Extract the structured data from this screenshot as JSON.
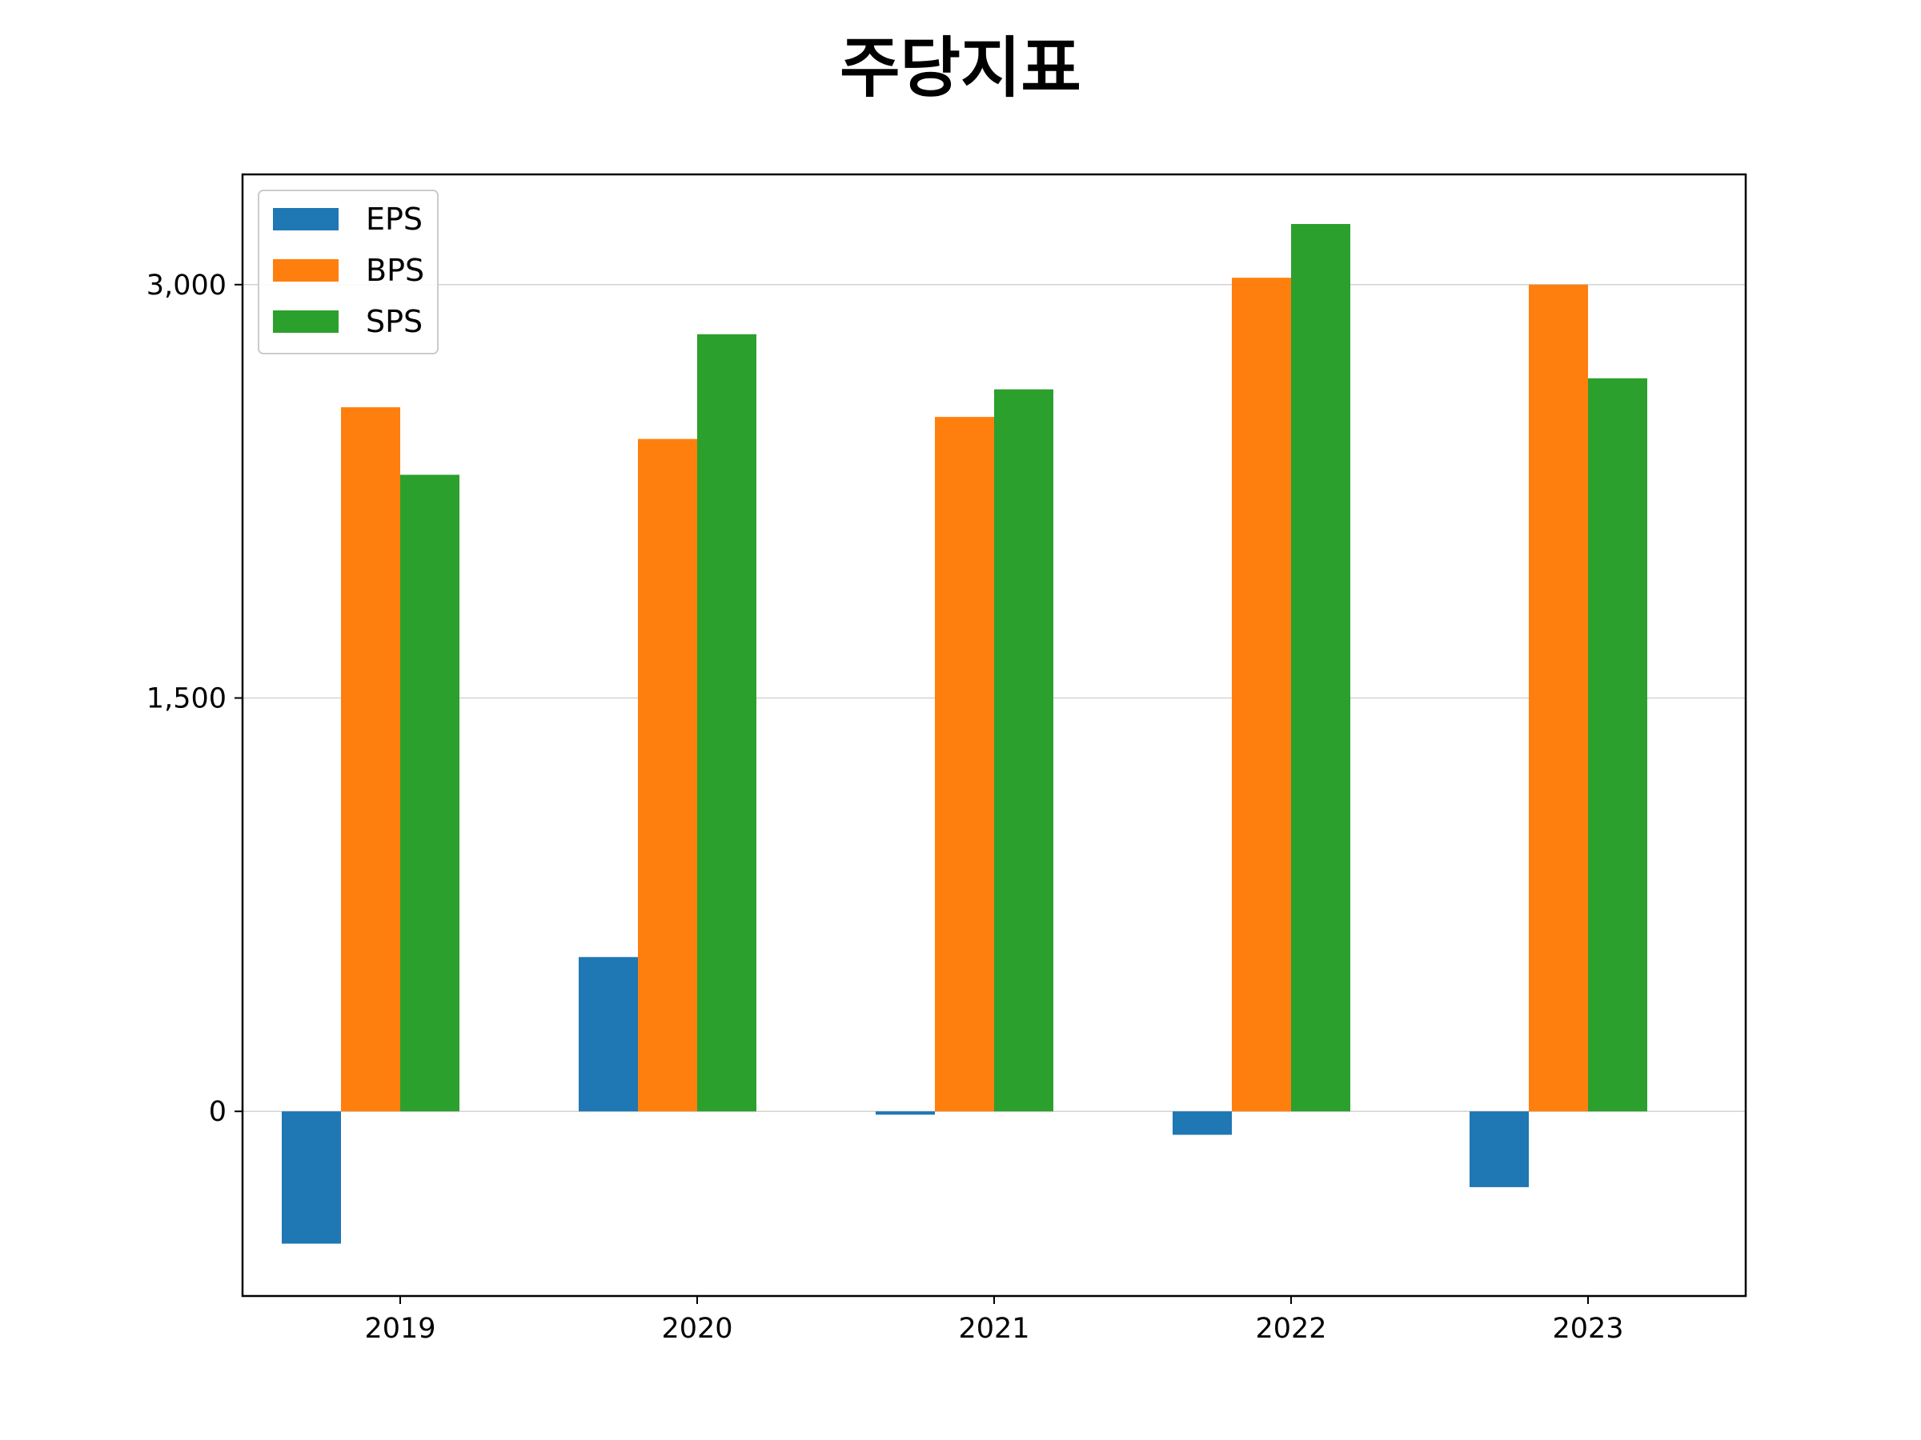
{
  "chart_data": {
    "type": "bar",
    "title": "주당지표",
    "xlabel": "",
    "ylabel": "",
    "categories": [
      "2019",
      "2020",
      "2021",
      "2022",
      "2023"
    ],
    "series": [
      {
        "name": "EPS",
        "color": "#1f77b4",
        "values": [
          -480,
          560,
          -12,
          -85,
          -275
        ]
      },
      {
        "name": "BPS",
        "color": "#ff7f0e",
        "values": [
          2555,
          2440,
          2520,
          3025,
          3000
        ]
      },
      {
        "name": "SPS",
        "color": "#2ca02c",
        "values": [
          2310,
          2820,
          2620,
          3220,
          2660
        ]
      }
    ],
    "ylim": [
      -670,
      3400
    ],
    "yticks": [
      0,
      1500,
      3000
    ],
    "ytick_labels": [
      "0",
      "1,500",
      "3,000"
    ],
    "grid": "y",
    "legend_position": "upper left"
  }
}
